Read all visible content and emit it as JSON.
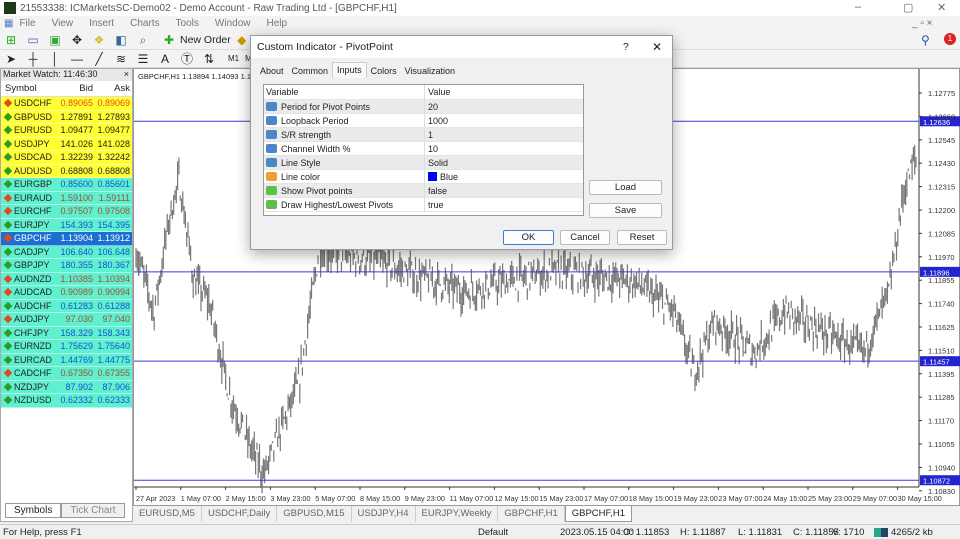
{
  "window": {
    "title": "21553338: ICMarketsSC-Demo02 - Demo Account - Raw Trading Ltd - [GBPCHF,H1]",
    "minimize": "–",
    "restore": "▢",
    "close": "✕"
  },
  "menu": [
    "File",
    "View",
    "Insert",
    "Charts",
    "Tools",
    "Window",
    "Help"
  ],
  "toolbar": {
    "new_order": "New Order",
    "m1": "M1",
    "m5": "M",
    "text_tool": "A",
    "notification_count": "1"
  },
  "market_watch": {
    "title": "Market Watch: 11:46:30",
    "close": "×",
    "headers": [
      "Symbol",
      "Bid",
      "Ask"
    ],
    "rows": [
      {
        "symbol": "USDCHF",
        "bid": "0.89065",
        "ask": "0.89069",
        "dir": "down",
        "group": "yellow"
      },
      {
        "symbol": "GBPUSD",
        "bid": "1.27891",
        "ask": "1.27893",
        "dir": "up",
        "group": "yellow"
      },
      {
        "symbol": "EURUSD",
        "bid": "1.09477",
        "ask": "1.09477",
        "dir": "up",
        "group": "yellow"
      },
      {
        "symbol": "USDJPY",
        "bid": "141.026",
        "ask": "141.028",
        "dir": "up",
        "group": "yellow"
      },
      {
        "symbol": "USDCAD",
        "bid": "1.32239",
        "ask": "1.32242",
        "dir": "up",
        "group": "yellow"
      },
      {
        "symbol": "AUDUSD",
        "bid": "0.68808",
        "ask": "0.68808",
        "dir": "up",
        "group": "yellow"
      },
      {
        "symbol": "EURGBP",
        "bid": "0.85600",
        "ask": "0.85601",
        "dir": "up",
        "group": "cyan"
      },
      {
        "symbol": "EURAUD",
        "bid": "1.59100",
        "ask": "1.59111",
        "dir": "down",
        "group": "cyan"
      },
      {
        "symbol": "EURCHF",
        "bid": "0.97507",
        "ask": "0.97508",
        "dir": "down",
        "group": "cyan"
      },
      {
        "symbol": "EURJPY",
        "bid": "154.393",
        "ask": "154.395",
        "dir": "up",
        "group": "cyan"
      },
      {
        "symbol": "GBPCHF",
        "bid": "1.13904",
        "ask": "1.13912",
        "dir": "down",
        "group": "selected"
      },
      {
        "symbol": "CADJPY",
        "bid": "106.640",
        "ask": "106.648",
        "dir": "up",
        "group": "cyan"
      },
      {
        "symbol": "GBPJPY",
        "bid": "180.355",
        "ask": "180.367",
        "dir": "up",
        "group": "cyan"
      },
      {
        "symbol": "AUDNZD",
        "bid": "1.10385",
        "ask": "1.10394",
        "dir": "down",
        "group": "cyan"
      },
      {
        "symbol": "AUDCAD",
        "bid": "0.90989",
        "ask": "0.90994",
        "dir": "down",
        "group": "cyan"
      },
      {
        "symbol": "AUDCHF",
        "bid": "0.61283",
        "ask": "0.61288",
        "dir": "up",
        "group": "cyan"
      },
      {
        "symbol": "AUDJPY",
        "bid": "97.030",
        "ask": "97.040",
        "dir": "down",
        "group": "cyan"
      },
      {
        "symbol": "CHFJPY",
        "bid": "158.329",
        "ask": "158.343",
        "dir": "up",
        "group": "cyan"
      },
      {
        "symbol": "EURNZD",
        "bid": "1.75629",
        "ask": "1.75640",
        "dir": "up",
        "group": "cyan"
      },
      {
        "symbol": "EURCAD",
        "bid": "1.44769",
        "ask": "1.44775",
        "dir": "up",
        "group": "cyan"
      },
      {
        "symbol": "CADCHF",
        "bid": "0.67350",
        "ask": "0.67355",
        "dir": "down",
        "group": "cyan"
      },
      {
        "symbol": "NZDJPY",
        "bid": "87.902",
        "ask": "87.906",
        "dir": "up",
        "group": "cyan"
      },
      {
        "symbol": "NZDUSD",
        "bid": "0.62332",
        "ask": "0.62333",
        "dir": "up",
        "group": "cyan"
      }
    ],
    "tabs": [
      "Symbols",
      "Tick Chart"
    ]
  },
  "chart": {
    "header": "GBPCHF,H1  1.13894 1.14093 1.1",
    "price_ticks": [
      "1.12775",
      "1.12660",
      "1.12545",
      "1.12430",
      "1.12315",
      "1.12200",
      "1.12085",
      "1.11970",
      "1.11855",
      "1.11740",
      "1.11625",
      "1.11510",
      "1.11395",
      "1.11285",
      "1.11170",
      "1.11055",
      "1.10940",
      "1.10830"
    ],
    "levels": [
      "1.12636",
      "1.11896",
      "1.11457",
      "1.10872"
    ],
    "level_color": "#3a3ad8",
    "time_labels": [
      "27 Apr 2023",
      "1 May 07:00",
      "2 May 15:00",
      "3 May 23:00",
      "5 May 07:00",
      "8 May 15:00",
      "9 May 23:00",
      "11 May 07:00",
      "12 May 15:00",
      "15 May 23:00",
      "17 May 07:00",
      "18 May 15:00",
      "19 May 23:00",
      "23 May 07:00",
      "24 May 15:00",
      "25 May 23:00",
      "29 May 07:00",
      "30 May 15:00"
    ]
  },
  "chart_tabs": [
    "EURUSD,M5",
    "USDCHF,Daily",
    "GBPUSD,M15",
    "USDJPY,H4",
    "EURJPY,Weekly",
    "GBPCHF,H1",
    "GBPCHF,H1"
  ],
  "status": {
    "help": "For Help, press F1",
    "profile": "Default",
    "time": "2023.05.15 04:00",
    "open": "O: 1.11853",
    "high": "H: 1.11887",
    "low": "L: 1.11831",
    "close": "C: 1.11855",
    "volume": "V: 1710",
    "traffic": "4265/2 kb"
  },
  "dialog": {
    "title": "Custom Indicator - PivotPoint",
    "help": "?",
    "close": "✕",
    "tabs": [
      "About",
      "Common",
      "Inputs",
      "Colors",
      "Visualization"
    ],
    "active_tab": "Inputs",
    "columns": [
      "Variable",
      "Value"
    ],
    "rows": [
      {
        "name": "Period for Pivot Points",
        "value": "20",
        "type": "int"
      },
      {
        "name": "Loopback Period",
        "value": "1000",
        "type": "int"
      },
      {
        "name": "S/R strength",
        "value": "1",
        "type": "int"
      },
      {
        "name": "Channel Width %",
        "value": "10",
        "type": "int"
      },
      {
        "name": "Line Style",
        "value": "Solid",
        "type": "int"
      },
      {
        "name": "Line color",
        "value": "Blue",
        "type": "color",
        "swatch": "#0000ff"
      },
      {
        "name": "Show Pivot points",
        "value": "false",
        "type": "bool"
      },
      {
        "name": "Draw Highest/Lowest Pivots",
        "value": "true",
        "type": "bool"
      }
    ],
    "load": "Load",
    "save": "Save",
    "ok": "OK",
    "cancel": "Cancel",
    "reset": "Reset"
  }
}
